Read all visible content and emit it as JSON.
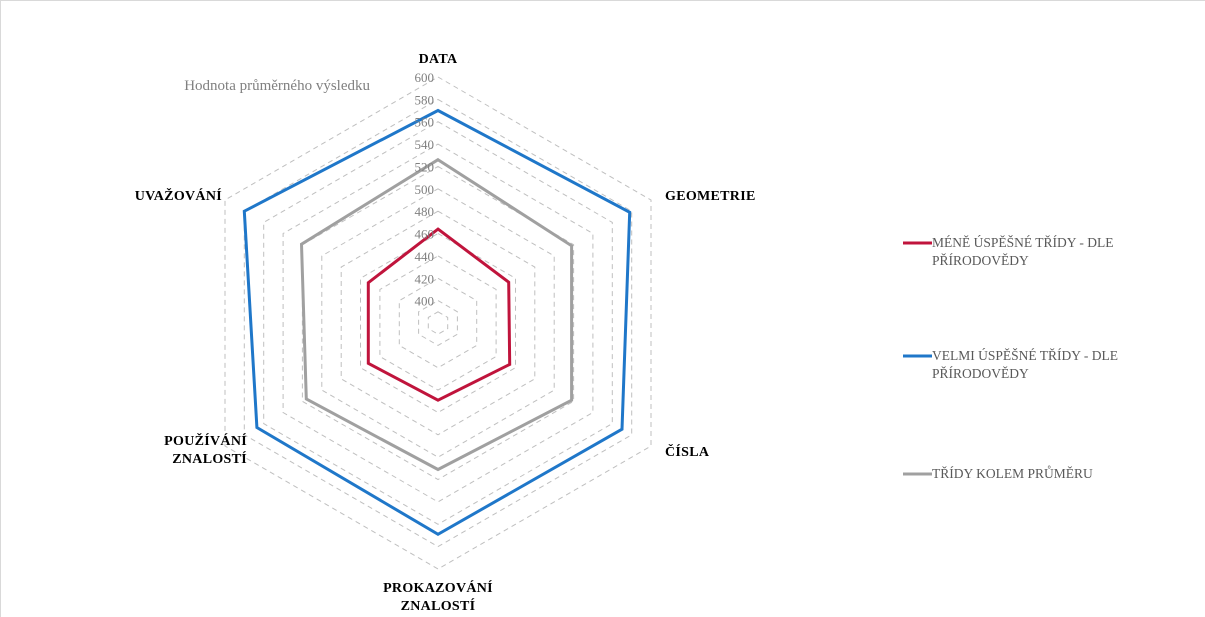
{
  "chart_data": {
    "type": "radar",
    "title": "",
    "subtitle": "Hodnota průměrného výsledku",
    "axes": [
      {
        "name": "DATA",
        "lines": [
          "DATA"
        ]
      },
      {
        "name": "GEOMETRIE",
        "lines": [
          "GEOMETRIE"
        ]
      },
      {
        "name": "ČÍSLA",
        "lines": [
          "ČÍSLA"
        ]
      },
      {
        "name": "PROKAZOVÁNÍ ZNALOSTÍ",
        "lines": [
          "PROKAZOVÁNÍ",
          "ZNALOSTÍ"
        ]
      },
      {
        "name": "POUŽÍVÁNÍ ZNALOSTÍ",
        "lines": [
          "POUŽÍVÁNÍ",
          "ZNALOSTÍ"
        ]
      },
      {
        "name": "UVAŽOVÁNÍ",
        "lines": [
          "UVAŽOVÁNÍ"
        ]
      }
    ],
    "rlim": [
      380,
      600
    ],
    "ticks": [
      400,
      420,
      440,
      460,
      480,
      500,
      520,
      540,
      560,
      580,
      600
    ],
    "grid": true,
    "legend_position": "right",
    "series": [
      {
        "name": "MÉNĚ ÚSPĚŠNÉ TŘÍDY - DLE PŘÍRODOVĚDY",
        "legend_lines": [
          "MÉNĚ ÚSPĚŠNÉ TŘÍDY - DLE",
          "PŘÍRODOVĚDY"
        ],
        "color": "#c0143c",
        "values": [
          464,
          453,
          454,
          449,
          452,
          452
        ]
      },
      {
        "name": "VELMI ÚSPĚŠNÉ TŘÍDY - DLE PŘÍRODOVĚDY",
        "legend_lines": [
          "VELMI ÚSPĚŠNÉ TŘÍDY - DLE",
          "PŘÍRODOVĚDY"
        ],
        "color": "#1f77c9",
        "values": [
          570,
          578,
          570,
          569,
          567,
          580
        ]
      },
      {
        "name": "TŘÍDY KOLEM PRŮMĚRU",
        "legend_lines": [
          "TŘÍDY KOLEM PRŮMĚRU"
        ],
        "color": "#a0a0a0",
        "values": [
          526,
          518,
          518,
          511,
          516,
          521
        ]
      }
    ]
  }
}
